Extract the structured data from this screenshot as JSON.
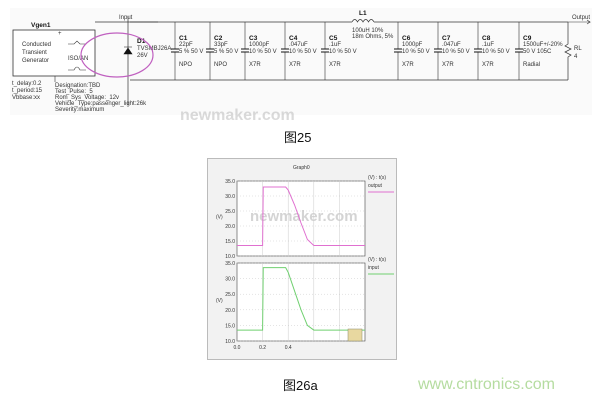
{
  "schematic": {
    "generator": {
      "name": "Vgen1",
      "label": [
        "Conducted",
        "Transient",
        "Generator"
      ],
      "pulse": "ISO/AN",
      "params": [
        "t_delay:0.2",
        "t_period:15",
        "Vbbase:xx"
      ]
    },
    "generator_attrs": [
      "Designation:TBD",
      "Test_Pulse:_5",
      "Rom_Sys_Voltage:_12v",
      "Vehicle_Type:passenger_light:26k",
      "Severity:maximum"
    ],
    "input_label": "Input",
    "output_label": "Output",
    "diode": {
      "name": "D1",
      "part": "TVSMBJ26A",
      "value": "26V"
    },
    "inductor": {
      "name": "L1",
      "value": "100uH 10%",
      "resistance": "18m Ohms, 5%"
    },
    "capacitors": [
      {
        "name": "C1",
        "value": "22pF",
        "rating": "5 % 50 V",
        "dielectric": "NPO"
      },
      {
        "name": "C2",
        "value": "33pF",
        "rating": "5 % 50 V",
        "dielectric": "NPO"
      },
      {
        "name": "C3",
        "value": "1000pF",
        "rating": "10 % 50 V",
        "dielectric": "X7R"
      },
      {
        "name": "C4",
        "value": ".047uF",
        "rating": "10 % 50 V",
        "dielectric": "X7R"
      },
      {
        "name": "C5",
        "value": ".1uF",
        "rating": "10 % 50 V",
        "dielectric": "X7R"
      },
      {
        "name": "C6",
        "value": "1000pF",
        "rating": "10 % 50 V",
        "dielectric": "X7R"
      },
      {
        "name": "C7",
        "value": ".047uF",
        "rating": "10 % 50 V",
        "dielectric": "X7R"
      },
      {
        "name": "C8",
        "value": ".1uF",
        "rating": "10 % 50 V",
        "dielectric": "X7R"
      },
      {
        "name": "C9",
        "value": "1500uF+/-20%",
        "rating": "50 V 105C",
        "dielectric": "Radial"
      }
    ],
    "load": {
      "name": "RL",
      "value": "4"
    },
    "highlight_color": "#c060c0"
  },
  "caption1": "图25",
  "caption2": "图26a",
  "watermark": "www.cntronics.com",
  "logo_watermark": "newmaker.com",
  "chart_data": [
    {
      "type": "line",
      "title": "Graph0",
      "ylabel": "(V)",
      "legend_header": "(V) : t(s)",
      "series": [
        {
          "name": "output",
          "color": "#e070d0",
          "x": [
            0,
            0.2,
            0.205,
            0.38,
            0.4,
            0.45,
            0.5,
            0.55,
            0.6,
            1.0
          ],
          "y": [
            13.5,
            13.5,
            33,
            33,
            32,
            27,
            21,
            15.5,
            13.5,
            13.5
          ]
        }
      ],
      "ylim": [
        10,
        35
      ],
      "yticks": [
        "35.0",
        "30.0",
        "25.0",
        "20.0",
        "15.0",
        "10.0"
      ],
      "xlim": [
        0,
        1
      ],
      "grid": true
    },
    {
      "type": "line",
      "ylabel": "(V)",
      "legend_header": "(V) : t(s)",
      "series": [
        {
          "name": "input",
          "color": "#70d070",
          "x": [
            0,
            0.2,
            0.205,
            0.38,
            0.4,
            0.45,
            0.5,
            0.55,
            0.6,
            1.0
          ],
          "y": [
            13.5,
            13.5,
            33.5,
            33.5,
            32,
            26,
            20,
            15,
            13.5,
            13.5
          ]
        }
      ],
      "ylim": [
        10,
        35
      ],
      "yticks": [
        "35.0",
        "30.0",
        "25.0",
        "20.0",
        "15.0",
        "10.0"
      ],
      "xticks": [
        "0.0",
        "0.2",
        "0.4"
      ],
      "xlim": [
        0,
        1
      ],
      "grid": true
    }
  ]
}
